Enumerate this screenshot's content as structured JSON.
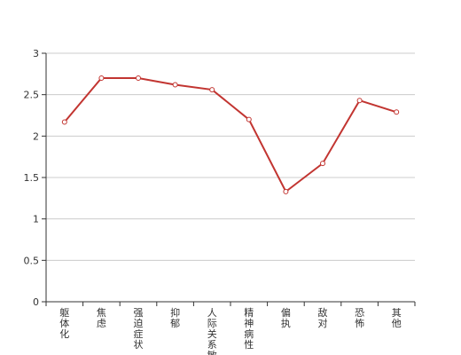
{
  "chart_data": {
    "type": "line",
    "categories": [
      "躯体化",
      "焦虑",
      "强迫症状",
      "抑郁",
      "人际关系敏",
      "精神病性",
      "偏执",
      "敌对",
      "恐怖",
      "其他"
    ],
    "values": [
      2.17,
      2.7,
      2.7,
      2.62,
      2.56,
      2.2,
      1.33,
      1.67,
      2.43,
      2.29
    ],
    "color": "#c23531",
    "ylim": [
      0,
      3
    ],
    "yticks": [
      0,
      0.5,
      1,
      1.5,
      2,
      2.5,
      3
    ],
    "grid": true
  }
}
